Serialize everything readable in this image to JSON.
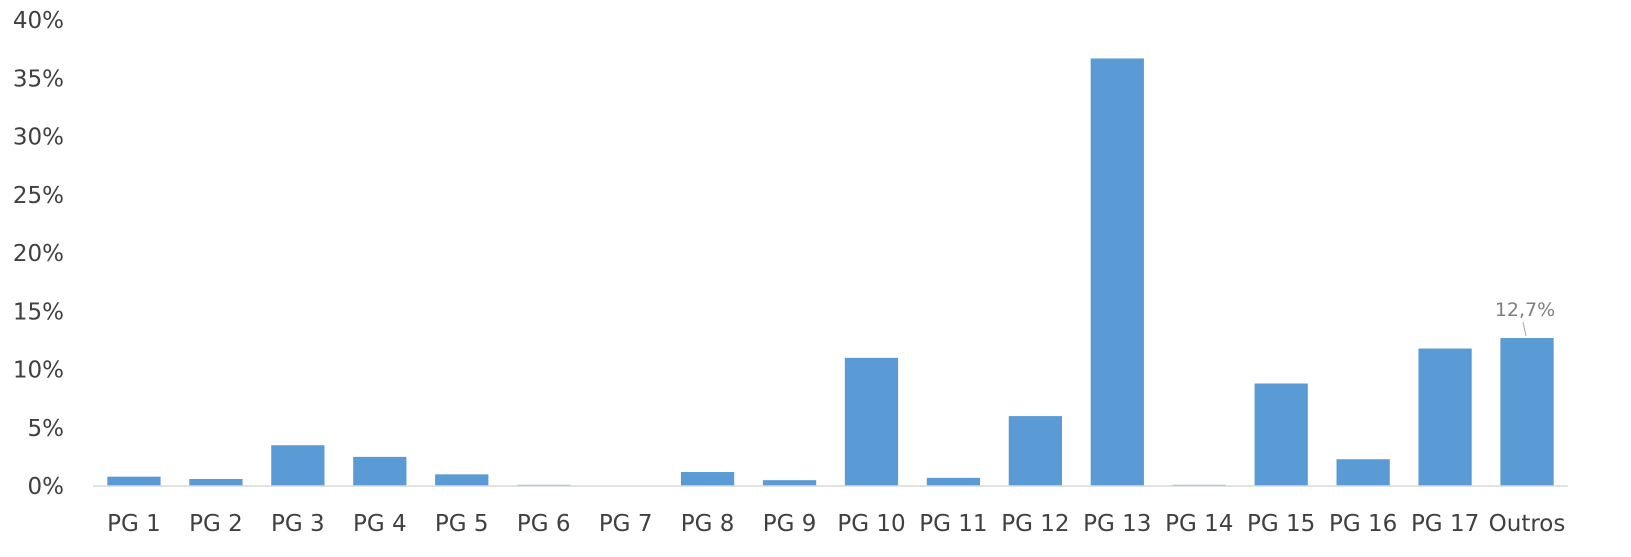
{
  "chart_data": {
    "type": "bar",
    "title": "",
    "xlabel": "",
    "ylabel": "",
    "ylim": [
      0,
      40
    ],
    "y_ticks": [
      "0%",
      "5%",
      "10%",
      "15%",
      "20%",
      "25%",
      "30%",
      "35%",
      "40%"
    ],
    "y_tick_values": [
      0,
      5,
      10,
      15,
      20,
      25,
      30,
      35,
      40
    ],
    "categories": [
      "PG 1",
      "PG 2",
      "PG 3",
      "PG 4",
      "PG 5",
      "PG 6",
      "PG 7",
      "PG 8",
      "PG 9",
      "PG 10",
      "PG 11",
      "PG 12",
      "PG 13",
      "PG 14",
      "PG 15",
      "PG 16",
      "PG 17",
      "Outros"
    ],
    "values": [
      0.8,
      0.6,
      3.5,
      2.5,
      1.0,
      0.1,
      0.0,
      1.2,
      0.5,
      11.0,
      0.7,
      6.0,
      36.7,
      0.1,
      8.8,
      2.3,
      11.8,
      12.7
    ],
    "data_labels": [
      {
        "category": "Outros",
        "text": "12,7%"
      }
    ],
    "bar_color": "#5b9bd5",
    "axis_color": "#d9d9d9",
    "grid": false,
    "legend": "none"
  }
}
